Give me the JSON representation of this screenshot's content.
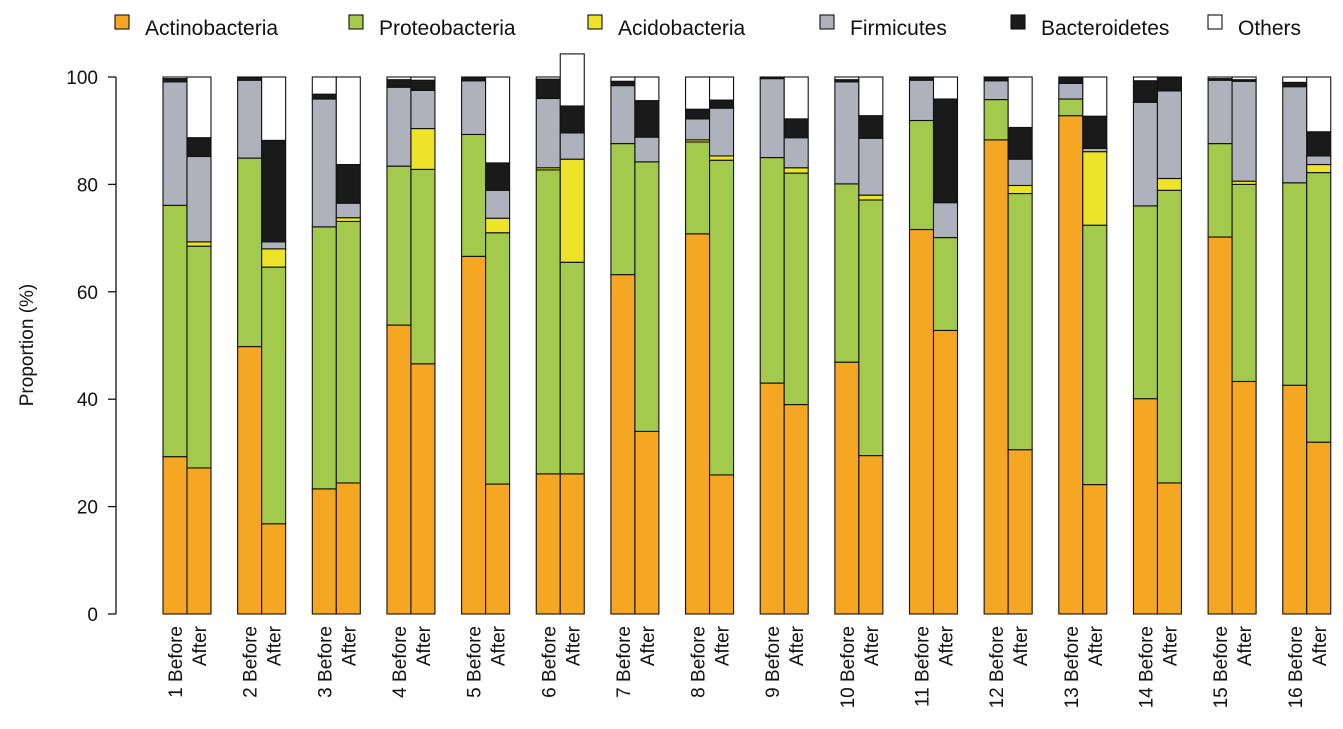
{
  "colors": {
    "Actinobacteria": "#f5a623",
    "Proteobacteria": "#a3c94d",
    "Acidobacteria": "#ede328",
    "Firmicutes": "#adb2bd",
    "Bacteroidetes": "#1a1a1a",
    "Others": "#ffffff"
  },
  "chart_data": {
    "type": "bar",
    "stacked": true,
    "title": "",
    "ylabel": "Proportion (%)",
    "xlabel": "",
    "ylim": [
      0,
      100
    ],
    "yticks": [
      0,
      20,
      40,
      60,
      80,
      100
    ],
    "grid": false,
    "legend_position": "top",
    "categories": [
      "1 Before",
      "After",
      "2 Before",
      "After",
      "3 Before",
      "After",
      "4 Before",
      "After",
      "5 Before",
      "After",
      "6 Before",
      "After",
      "7 Before",
      "After",
      "8 Before",
      "After",
      "9 Before",
      "After",
      "10 Before",
      "After",
      "11 Before",
      "After",
      "12 Before",
      "After",
      "13 Before",
      "After",
      "14 Before",
      "After",
      "15 Before",
      "After",
      "16 Before",
      "After"
    ],
    "series": [
      {
        "name": "Actinobacteria",
        "values": [
          29.3,
          27.2,
          49.8,
          16.8,
          23.3,
          24.4,
          53.8,
          46.6,
          66.6,
          24.2,
          26.1,
          26.1,
          63.2,
          34.0,
          70.8,
          25.9,
          43.0,
          39.0,
          46.9,
          29.5,
          71.6,
          52.8,
          88.3,
          30.6,
          92.8,
          24.1,
          40.1,
          24.4,
          70.2,
          43.3,
          42.6,
          32.0
        ]
      },
      {
        "name": "Proteobacteria",
        "values": [
          46.8,
          41.3,
          35.1,
          47.8,
          48.8,
          48.7,
          29.6,
          36.2,
          22.7,
          46.8,
          56.6,
          39.4,
          24.4,
          50.2,
          17.1,
          58.6,
          42.0,
          43.1,
          33.2,
          47.6,
          20.3,
          17.3,
          7.5,
          47.7,
          3.1,
          48.3,
          35.9,
          54.5,
          17.4,
          36.7,
          37.7,
          50.2
        ]
      },
      {
        "name": "Acidobacteria",
        "values": [
          0,
          0.8,
          0,
          3.4,
          0,
          0.7,
          0,
          7.6,
          0,
          2.7,
          0.4,
          19.2,
          0,
          0,
          0.4,
          0.8,
          0,
          1.0,
          0,
          0.9,
          0,
          0,
          0,
          1.5,
          0,
          13.7,
          0,
          2.2,
          0,
          0.6,
          0,
          1.5
        ]
      },
      {
        "name": "Firmicutes",
        "values": [
          23.0,
          15.9,
          14.5,
          1.3,
          23.8,
          2.7,
          14.7,
          7.1,
          10.0,
          5.2,
          12.9,
          4.9,
          10.8,
          4.6,
          3.9,
          8.9,
          14.7,
          5.6,
          19.0,
          10.6,
          7.5,
          6.5,
          3.5,
          4.9,
          2.9,
          0.6,
          19.3,
          16.3,
          11.8,
          18.6,
          17.9,
          1.6
        ]
      },
      {
        "name": "Bacteroidetes",
        "values": [
          0.6,
          3.5,
          0.6,
          18.9,
          0.9,
          7.2,
          1.4,
          1.9,
          0.7,
          5.1,
          3.6,
          5.0,
          0.8,
          6.8,
          1.8,
          1.5,
          0.3,
          3.5,
          0.4,
          4.2,
          0.6,
          19.3,
          0.6,
          5.9,
          1.2,
          6.0,
          4.0,
          2.6,
          0.3,
          0.3,
          0.8,
          4.5
        ]
      },
      {
        "name": "Others",
        "values": [
          0.3,
          11.3,
          0,
          11.8,
          3.2,
          16.3,
          0.5,
          0.6,
          0.0,
          16.0,
          0.4,
          9.7,
          0.8,
          4.4,
          6.0,
          4.3,
          0,
          7.8,
          0.5,
          7.2,
          0,
          4.1,
          0.1,
          9.4,
          0,
          7.3,
          0.7,
          0,
          0.3,
          0.5,
          1.0,
          10.2
        ]
      }
    ]
  }
}
